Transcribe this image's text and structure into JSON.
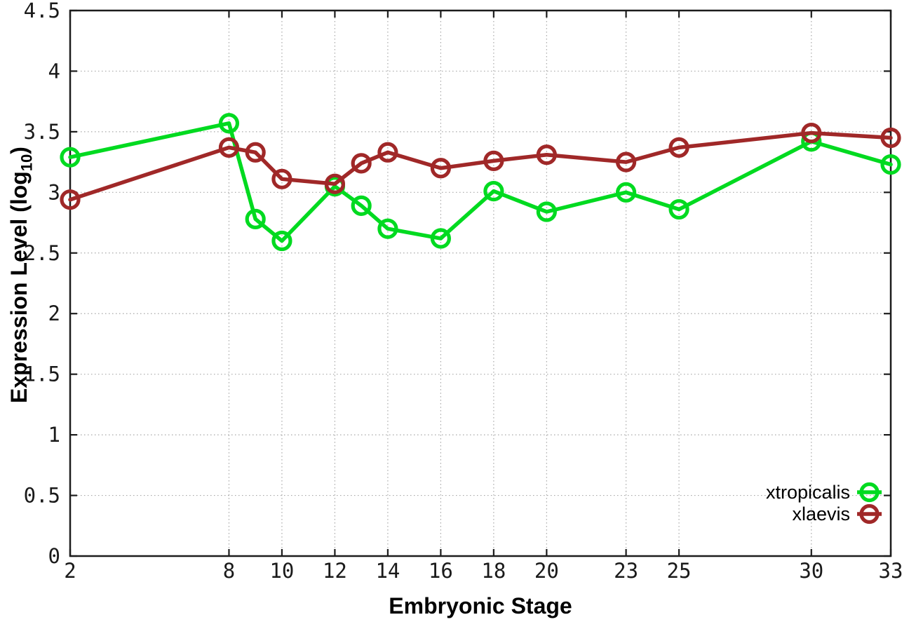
{
  "chart_data": {
    "type": "line",
    "title": "",
    "xlabel": "Embryonic Stage",
    "ylabel_main": "Expression Level (log",
    "ylabel_sub": "10",
    "ylabel_close": ")",
    "x": [
      2,
      8,
      9,
      10,
      12,
      13,
      14,
      16,
      18,
      20,
      23,
      25,
      30,
      33
    ],
    "xticks": [
      2,
      8,
      10,
      12,
      14,
      16,
      18,
      20,
      23,
      25,
      30,
      33
    ],
    "yticks": [
      0,
      0.5,
      1,
      1.5,
      2,
      2.5,
      3,
      3.5,
      4,
      4.5
    ],
    "xlim": [
      2,
      33
    ],
    "ylim": [
      0,
      4.5
    ],
    "grid": "dotted",
    "legend_position": "inside-bottom-right",
    "series": [
      {
        "name": "xtropicalis",
        "color": "#00da20",
        "values": [
          3.29,
          3.57,
          2.78,
          2.6,
          3.05,
          2.89,
          2.7,
          2.62,
          3.01,
          2.84,
          3.0,
          2.86,
          3.42,
          3.23
        ]
      },
      {
        "name": "xlaevis",
        "color": "#a02828",
        "values": [
          2.94,
          3.37,
          3.33,
          3.11,
          3.07,
          3.24,
          3.33,
          3.2,
          3.26,
          3.31,
          3.25,
          3.37,
          3.49,
          3.45
        ]
      }
    ]
  }
}
